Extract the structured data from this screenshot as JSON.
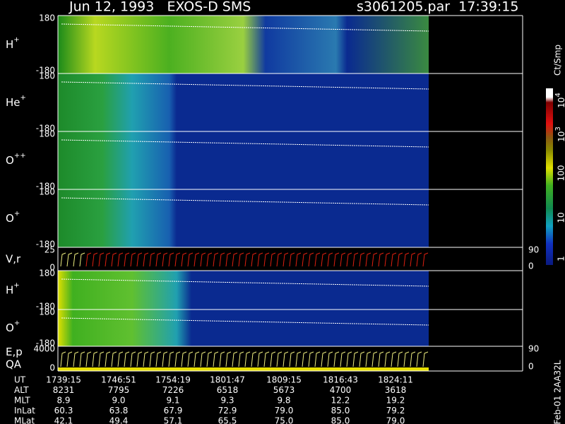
{
  "header": {
    "title": "Jun 12, 1993   EXOS-D SMS",
    "file": "s3061205.par  17:39:15"
  },
  "panels": [
    {
      "label": "H",
      "sup": "+",
      "ticks": [
        "180",
        "-180"
      ]
    },
    {
      "label": "He",
      "sup": "+",
      "ticks": [
        "180",
        "-180"
      ]
    },
    {
      "label": "O",
      "sup": "++",
      "ticks": [
        "180",
        "-180"
      ]
    },
    {
      "label": "O",
      "sup": "+",
      "ticks": [
        "180",
        "-180"
      ]
    },
    {
      "label": "V,r",
      "ticks": [
        "25",
        "0"
      ],
      "right_ticks": [
        "90",
        "0"
      ]
    },
    {
      "label": "H",
      "sup": "+",
      "ticks": [
        "180",
        "-180"
      ]
    },
    {
      "label": "O",
      "sup": "+",
      "ticks": [
        "180",
        "-180"
      ]
    },
    {
      "label": "E,p",
      "label2": "QA",
      "ticks": [
        "4000",
        "0"
      ],
      "right_ticks": [
        "90",
        "0"
      ]
    }
  ],
  "colorbar": {
    "unit": "Ct/Smp",
    "labels": [
      {
        "base": "10",
        "exp": "4"
      },
      {
        "base": "10",
        "exp": "3"
      },
      "100",
      "10",
      "1"
    ]
  },
  "footer": {
    "rows": [
      {
        "label": "UT",
        "values": [
          "1739:15",
          "1746:51",
          "1754:19",
          "1801:47",
          "1809:15",
          "1816:43",
          "1824:11"
        ]
      },
      {
        "label": "ALT",
        "values": [
          "8231",
          "7795",
          "7226",
          "6518",
          "5673",
          "4700",
          "3618"
        ]
      },
      {
        "label": "MLT",
        "values": [
          "8.9",
          "9.0",
          "9.1",
          "9.3",
          "9.8",
          "12.2",
          "19.2"
        ]
      },
      {
        "label": "InLat",
        "values": [
          "60.3",
          "63.8",
          "67.9",
          "72.9",
          "79.0",
          "85.0",
          "79.2"
        ]
      },
      {
        "label": "MLat",
        "values": [
          "42.1",
          "49.4",
          "57.1",
          "65.5",
          "75.0",
          "85.0",
          "79.0"
        ]
      }
    ]
  },
  "id": "Feb-01 2AA32L"
}
